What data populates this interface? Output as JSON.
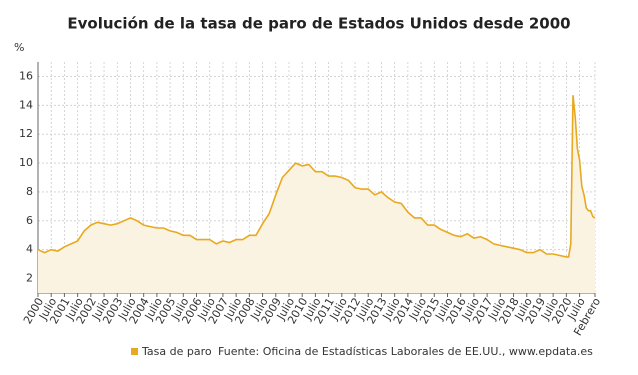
{
  "chart_data": {
    "type": "area",
    "title": "Evolución de la tasa de paro de Estados Unidos desde 2000",
    "y_unit": "%",
    "source": "Fuente: Oficina de Estadísticas Laborales de EE.UU., www.epdata.es",
    "x": [
      2000,
      2000.25,
      2000.5,
      2000.75,
      2001,
      2001.25,
      2001.5,
      2001.75,
      2002,
      2002.25,
      2002.5,
      2002.75,
      2003,
      2003.25,
      2003.5,
      2003.75,
      2004,
      2004.25,
      2004.5,
      2004.75,
      2005,
      2005.25,
      2005.5,
      2005.75,
      2006,
      2006.25,
      2006.5,
      2006.75,
      2007,
      2007.25,
      2007.5,
      2007.75,
      2008,
      2008.25,
      2008.5,
      2008.75,
      2009,
      2009.25,
      2009.5,
      2009.75,
      2010,
      2010.25,
      2010.5,
      2010.75,
      2011,
      2011.25,
      2011.5,
      2011.75,
      2012,
      2012.25,
      2012.5,
      2012.75,
      2013,
      2013.25,
      2013.5,
      2013.75,
      2014,
      2014.25,
      2014.5,
      2014.75,
      2015,
      2015.25,
      2015.5,
      2015.75,
      2016,
      2016.25,
      2016.5,
      2016.75,
      2017,
      2017.25,
      2017.5,
      2017.75,
      2018,
      2018.25,
      2018.5,
      2018.75,
      2019,
      2019.25,
      2019.5,
      2019.75,
      2020,
      2020.0833,
      2020.1667,
      2020.25,
      2020.3333,
      2020.4167,
      2020.5,
      2020.5833,
      2020.6667,
      2020.75,
      2020.8333,
      2020.9167,
      2021,
      2021.0833
    ],
    "series": [
      {
        "name": "Tasa de paro",
        "color": "#e8a91f",
        "fill": "#fbf3e1",
        "values": [
          4.0,
          3.8,
          4.0,
          3.9,
          4.2,
          4.4,
          4.6,
          5.3,
          5.7,
          5.9,
          5.8,
          5.7,
          5.8,
          6.0,
          6.2,
          6.0,
          5.7,
          5.6,
          5.5,
          5.5,
          5.3,
          5.2,
          5.0,
          5.0,
          4.7,
          4.7,
          4.7,
          4.4,
          4.6,
          4.5,
          4.7,
          4.7,
          5.0,
          5.0,
          5.8,
          6.5,
          7.8,
          9.0,
          9.5,
          10.0,
          9.8,
          9.9,
          9.4,
          9.4,
          9.1,
          9.1,
          9.0,
          8.8,
          8.3,
          8.2,
          8.2,
          7.8,
          8.0,
          7.6,
          7.3,
          7.2,
          6.6,
          6.2,
          6.2,
          5.7,
          5.7,
          5.4,
          5.2,
          5.0,
          4.9,
          5.1,
          4.8,
          4.9,
          4.7,
          4.4,
          4.3,
          4.2,
          4.1,
          4.0,
          3.8,
          3.8,
          4.0,
          3.7,
          3.7,
          3.6,
          3.5,
          3.5,
          4.4,
          14.7,
          13.2,
          11.0,
          10.2,
          8.4,
          7.8,
          6.9,
          6.7,
          6.7,
          6.3,
          6.2
        ]
      }
    ],
    "xlim": [
      2000,
      2021.0833
    ],
    "xticks": [
      {
        "value": 2000,
        "label": "2000"
      },
      {
        "value": 2000.5,
        "label": "Julio"
      },
      {
        "value": 2001,
        "label": "2001"
      },
      {
        "value": 2001.5,
        "label": "Julio"
      },
      {
        "value": 2002,
        "label": "2002"
      },
      {
        "value": 2002.5,
        "label": "Julio"
      },
      {
        "value": 2003,
        "label": "2003"
      },
      {
        "value": 2003.5,
        "label": "Julio"
      },
      {
        "value": 2004,
        "label": "2004"
      },
      {
        "value": 2004.5,
        "label": "Julio"
      },
      {
        "value": 2005,
        "label": "2005"
      },
      {
        "value": 2005.5,
        "label": "Julio"
      },
      {
        "value": 2006,
        "label": "2006"
      },
      {
        "value": 2006.5,
        "label": "Julio"
      },
      {
        "value": 2007,
        "label": "2007"
      },
      {
        "value": 2007.5,
        "label": "Julio"
      },
      {
        "value": 2008,
        "label": "2008"
      },
      {
        "value": 2008.5,
        "label": "Julio"
      },
      {
        "value": 2009,
        "label": "2009"
      },
      {
        "value": 2009.5,
        "label": "Julio"
      },
      {
        "value": 2010,
        "label": "2010"
      },
      {
        "value": 2010.5,
        "label": "Julio"
      },
      {
        "value": 2011,
        "label": "2011"
      },
      {
        "value": 2011.5,
        "label": "Julio"
      },
      {
        "value": 2012,
        "label": "2012"
      },
      {
        "value": 2012.5,
        "label": "Julio"
      },
      {
        "value": 2013,
        "label": "2013"
      },
      {
        "value": 2013.5,
        "label": "Julio"
      },
      {
        "value": 2014,
        "label": "2014"
      },
      {
        "value": 2014.5,
        "label": "Julio"
      },
      {
        "value": 2015,
        "label": "2015"
      },
      {
        "value": 2015.5,
        "label": "Julio"
      },
      {
        "value": 2016,
        "label": "2016"
      },
      {
        "value": 2016.5,
        "label": "Julio"
      },
      {
        "value": 2017,
        "label": "2017"
      },
      {
        "value": 2017.5,
        "label": "Julio"
      },
      {
        "value": 2018,
        "label": "2018"
      },
      {
        "value": 2018.5,
        "label": "Julio"
      },
      {
        "value": 2019,
        "label": "2019"
      },
      {
        "value": 2019.5,
        "label": "Julio"
      },
      {
        "value": 2020,
        "label": "2020"
      },
      {
        "value": 2020.5,
        "label": "Julio"
      },
      {
        "value": 2021.0833,
        "label": "Febrero"
      }
    ],
    "ylim": [
      1,
      17
    ],
    "yticks": [
      2,
      4,
      6,
      8,
      10,
      12,
      14,
      16
    ],
    "grid": true
  }
}
